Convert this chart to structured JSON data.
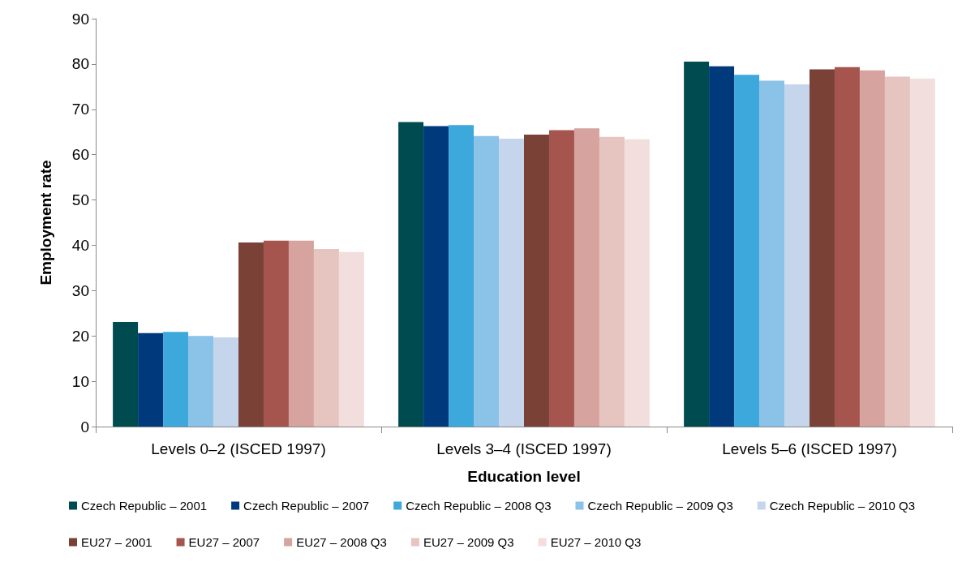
{
  "chart_data": {
    "type": "bar",
    "xlabel": "Education level",
    "ylabel": "Employment rate",
    "categories": [
      "Levels 0–2 (ISCED 1997)",
      "Levels 3–4 (ISCED 1997)",
      "Levels 5–6 (ISCED 1997)"
    ],
    "series": [
      {
        "name": "Czech Republic – 2001",
        "color": "#004b50",
        "values": [
          23.1,
          67.2,
          80.5
        ]
      },
      {
        "name": "Czech Republic – 2007",
        "color": "#003a7d",
        "values": [
          20.6,
          66.3,
          79.5
        ]
      },
      {
        "name": "Czech Republic – 2008 Q3",
        "color": "#3ca8dc",
        "values": [
          20.9,
          66.5,
          77.6
        ]
      },
      {
        "name": "Czech Republic – 2009 Q3",
        "color": "#8ac2e8",
        "values": [
          20.0,
          64.1,
          76.3
        ]
      },
      {
        "name": "Czech Republic – 2010 Q3",
        "color": "#c5d5ec",
        "values": [
          19.7,
          63.5,
          75.5
        ]
      },
      {
        "name": "EU27 – 2001",
        "color": "#7a4136",
        "values": [
          40.6,
          64.4,
          78.8
        ]
      },
      {
        "name": "EU27 – 2007",
        "color": "#a5554d",
        "values": [
          41.0,
          65.4,
          79.3
        ]
      },
      {
        "name": "EU27 – 2008 Q3",
        "color": "#d6a39e",
        "values": [
          41.0,
          65.8,
          78.6
        ]
      },
      {
        "name": "EU27 – 2009 Q3",
        "color": "#e6c4c0",
        "values": [
          39.2,
          63.9,
          77.2
        ]
      },
      {
        "name": "EU27 – 2010 Q3",
        "color": "#f2dedd",
        "values": [
          38.5,
          63.4,
          76.8
        ]
      }
    ],
    "ylim": [
      0,
      90
    ],
    "yticks": [
      0,
      10,
      20,
      30,
      40,
      50,
      60,
      70,
      80,
      90
    ],
    "grid": false,
    "legend": "bottom"
  }
}
